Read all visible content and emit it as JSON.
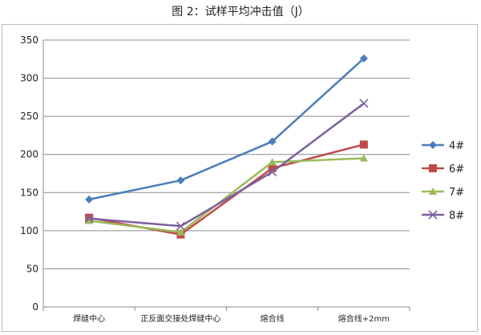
{
  "page": {
    "caption": "图 2：试样平均冲击值（J）"
  },
  "chart_data": {
    "type": "line",
    "title": "",
    "xlabel": "",
    "ylabel": "",
    "categories": [
      "焊缝中心",
      "正反面交接处焊缝中心",
      "熔合线",
      "熔合线+2mm"
    ],
    "ylim": [
      0,
      350
    ],
    "yticks": [
      0,
      50,
      100,
      150,
      200,
      250,
      300,
      350
    ],
    "grid": true,
    "legend_position": "right",
    "series": [
      {
        "name": "4#",
        "values": [
          141,
          166,
          217,
          326
        ],
        "color": "#4a7ebb",
        "marker": "diamond"
      },
      {
        "name": "6#",
        "values": [
          117,
          95,
          182,
          213
        ],
        "color": "#be4b48",
        "marker": "square"
      },
      {
        "name": "7#",
        "values": [
          113,
          98,
          190,
          195
        ],
        "color": "#9bbb59",
        "marker": "triangle"
      },
      {
        "name": "8#",
        "values": [
          116,
          106,
          177,
          267
        ],
        "color": "#7d60a0",
        "marker": "x"
      }
    ]
  }
}
